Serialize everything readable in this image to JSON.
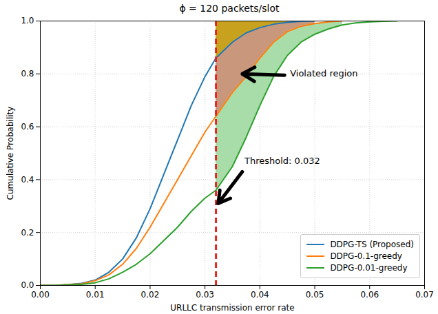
{
  "chart_data": {
    "type": "line",
    "title": "ϕ = 120 packets/slot",
    "x_label": "URLLC transmission error rate",
    "y_label": "Cumulative Probability",
    "x": [
      0,
      0.0025,
      0.005,
      0.0075,
      0.01,
      0.0125,
      0.015,
      0.0175,
      0.02,
      0.0225,
      0.025,
      0.0275,
      0.03,
      0.032,
      0.035,
      0.0375,
      0.04,
      0.0425,
      0.045,
      0.0475,
      0.05,
      0.0525,
      0.055,
      0.0575,
      0.06,
      0.0625,
      0.065
    ],
    "series": [
      {
        "name": "DDPG-TS (Proposed)",
        "color": "#1f77b4",
        "values": [
          0,
          0,
          0.003,
          0.008,
          0.02,
          0.05,
          0.1,
          0.18,
          0.29,
          0.42,
          0.55,
          0.68,
          0.79,
          0.86,
          0.92,
          0.955,
          0.975,
          0.988,
          0.995,
          0.999,
          1.0,
          null,
          null,
          null,
          null,
          null,
          null
        ]
      },
      {
        "name": "DDPG-0.1-greedy",
        "color": "#ff7f0e",
        "values": [
          0,
          0,
          0.003,
          0.006,
          0.018,
          0.04,
          0.08,
          0.14,
          0.22,
          0.31,
          0.4,
          0.49,
          0.58,
          0.64,
          0.73,
          0.79,
          0.86,
          0.92,
          0.96,
          0.98,
          0.99,
          0.997,
          1.0,
          null,
          null,
          null,
          null
        ]
      },
      {
        "name": "DDPG-0.01-greedy",
        "color": "#2ca02c",
        "values": [
          0,
          0,
          0.002,
          0.004,
          0.01,
          0.025,
          0.05,
          0.08,
          0.12,
          0.17,
          0.22,
          0.28,
          0.33,
          0.36,
          0.45,
          0.56,
          0.68,
          0.79,
          0.87,
          0.92,
          0.95,
          0.97,
          0.985,
          0.993,
          0.997,
          0.999,
          1.0
        ]
      }
    ],
    "threshold": 0.032,
    "annotations": [
      {
        "text": "Violated region"
      },
      {
        "text": "Threshold: 0.032"
      }
    ],
    "xlim": [
      0,
      0.07
    ],
    "xticks": [
      {
        "value": 0,
        "label": "0.00"
      },
      0.01,
      0.02,
      0.03,
      0.04,
      0.05,
      0.06,
      0.07
    ],
    "ylim": [
      0,
      1.0
    ],
    "yticks": [
      {
        "value": 0,
        "label": "0.0"
      },
      0.2,
      0.4,
      0.6,
      0.8,
      {
        "value": 1.0,
        "label": "1.0"
      }
    ],
    "grid": true,
    "legend": "lower right"
  }
}
